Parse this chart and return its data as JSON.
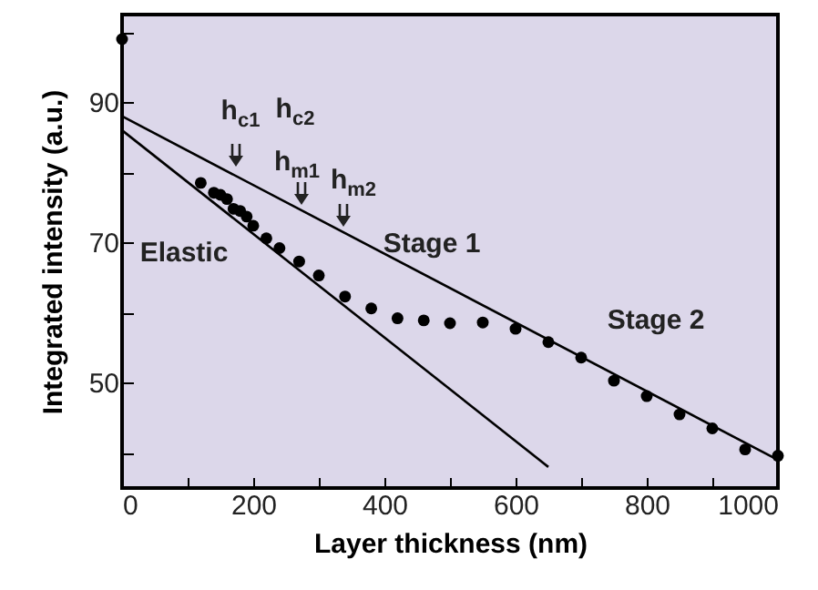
{
  "chart_data": {
    "type": "scatter",
    "xlabel": "Layer thickness (nm)",
    "ylabel": "Integrated intensity (a.u.)",
    "xlim": [
      0,
      1000
    ],
    "ylim": [
      35,
      102.5
    ],
    "xticks": [
      0,
      {
        "value": 100,
        "label": null
      },
      200,
      {
        "value": 300,
        "label": null
      },
      400,
      {
        "value": 500,
        "label": null
      },
      600,
      {
        "value": 700,
        "label": null
      },
      800,
      {
        "value": 900,
        "label": null
      },
      1000
    ],
    "yticks": [
      {
        "value": 40,
        "label": null
      },
      50,
      {
        "value": 60,
        "label": null
      },
      70,
      {
        "value": 80,
        "label": null
      },
      90,
      {
        "value": 100,
        "label": null
      }
    ],
    "grid": false,
    "marker": "circle",
    "series": [
      {
        "color": "#000000",
        "x": [
          0,
          120,
          140,
          150,
          160,
          170,
          180,
          190,
          200,
          220,
          240,
          270,
          300,
          340,
          380,
          420,
          460,
          500,
          550,
          600,
          650,
          700,
          750,
          800,
          850,
          900,
          950,
          1000
        ],
        "values": [
          99,
          78.5,
          77.1,
          76.8,
          76.2,
          74.8,
          74.5,
          73.7,
          72.4,
          70.6,
          69.2,
          67.3,
          65.3,
          62.3,
          60.6,
          59.2,
          58.9,
          58.5,
          58.6,
          57.7,
          55.8,
          53.6,
          50.3,
          48.1,
          45.5,
          43.5,
          40.5,
          39.6
        ]
      },
      {
        "type": "line",
        "color": "#000000",
        "line_style": "solid",
        "marker": "none",
        "x": [
          0,
          650
        ],
        "values": [
          86,
          38
        ]
      },
      {
        "type": "line",
        "color": "#000000",
        "line_style": "solid",
        "marker": "none",
        "x": [
          0,
          1000
        ],
        "values": [
          88,
          39
        ]
      }
    ],
    "annotations": [
      "h$_{c1}$",
      "h$_{c2}$",
      "h$_{m1}$",
      "h$_{m2}$",
      "Elastic",
      "Stage 1",
      "Stage 2"
    ]
  }
}
